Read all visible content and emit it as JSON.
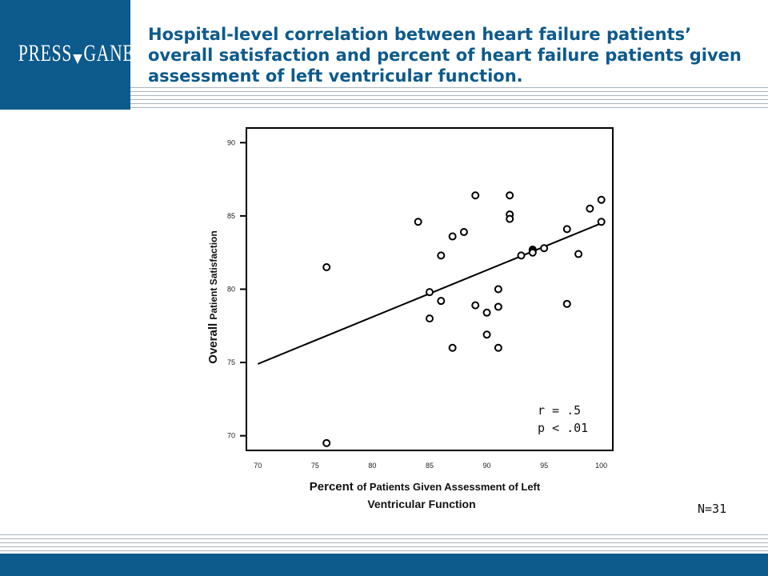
{
  "logo": {
    "left": "PRESS",
    "right": "GANEY"
  },
  "title": "Hospital-level correlation between heart failure patients’ overall satisfaction and percent of heart failure patients given assessment of left ventricular function.",
  "note": "N=31",
  "colors": {
    "brand": "#0d5a8c",
    "rule": "#aab4c0"
  },
  "chart_data": {
    "type": "scatter",
    "xlabel_bold": "Percent",
    "xlabel_rest": "of Patients Given Assessment of Left",
    "xlabel_line2": "Ventricular Function",
    "ylabel_bold": "Overall",
    "ylabel_rest": "Patient Satisfaction",
    "xlim": [
      69,
      101
    ],
    "ylim": [
      69,
      91
    ],
    "x_ticks": [
      70,
      75,
      80,
      85,
      90,
      95,
      100
    ],
    "y_ticks": [
      70,
      75,
      80,
      85,
      90
    ],
    "points": [
      {
        "x": 76,
        "y": 81.5
      },
      {
        "x": 76,
        "y": 69.5
      },
      {
        "x": 84,
        "y": 84.6
      },
      {
        "x": 85,
        "y": 79.8
      },
      {
        "x": 85,
        "y": 78.0
      },
      {
        "x": 86,
        "y": 82.3
      },
      {
        "x": 86,
        "y": 79.2
      },
      {
        "x": 87,
        "y": 83.6
      },
      {
        "x": 87,
        "y": 76.0
      },
      {
        "x": 88,
        "y": 83.9
      },
      {
        "x": 89,
        "y": 86.4
      },
      {
        "x": 89,
        "y": 78.9
      },
      {
        "x": 90,
        "y": 78.4
      },
      {
        "x": 90,
        "y": 76.9
      },
      {
        "x": 91,
        "y": 80.0
      },
      {
        "x": 91,
        "y": 78.8
      },
      {
        "x": 91,
        "y": 76.0
      },
      {
        "x": 92,
        "y": 86.4
      },
      {
        "x": 92,
        "y": 85.1
      },
      {
        "x": 92,
        "y": 84.8
      },
      {
        "x": 93,
        "y": 82.3
      },
      {
        "x": 94,
        "y": 82.7
      },
      {
        "x": 94,
        "y": 82.6
      },
      {
        "x": 95,
        "y": 82.8
      },
      {
        "x": 97,
        "y": 84.1
      },
      {
        "x": 97,
        "y": 79.0
      },
      {
        "x": 98,
        "y": 82.4
      },
      {
        "x": 99,
        "y": 85.5
      },
      {
        "x": 100,
        "y": 86.1
      },
      {
        "x": 100,
        "y": 84.6
      },
      {
        "x": 94,
        "y": 82.5
      }
    ],
    "fit_line": {
      "x": [
        70,
        100
      ],
      "y": [
        74.9,
        84.5
      ]
    },
    "stats": [
      "r = .5",
      "p < .01"
    ],
    "grid": false,
    "legend": "none"
  }
}
